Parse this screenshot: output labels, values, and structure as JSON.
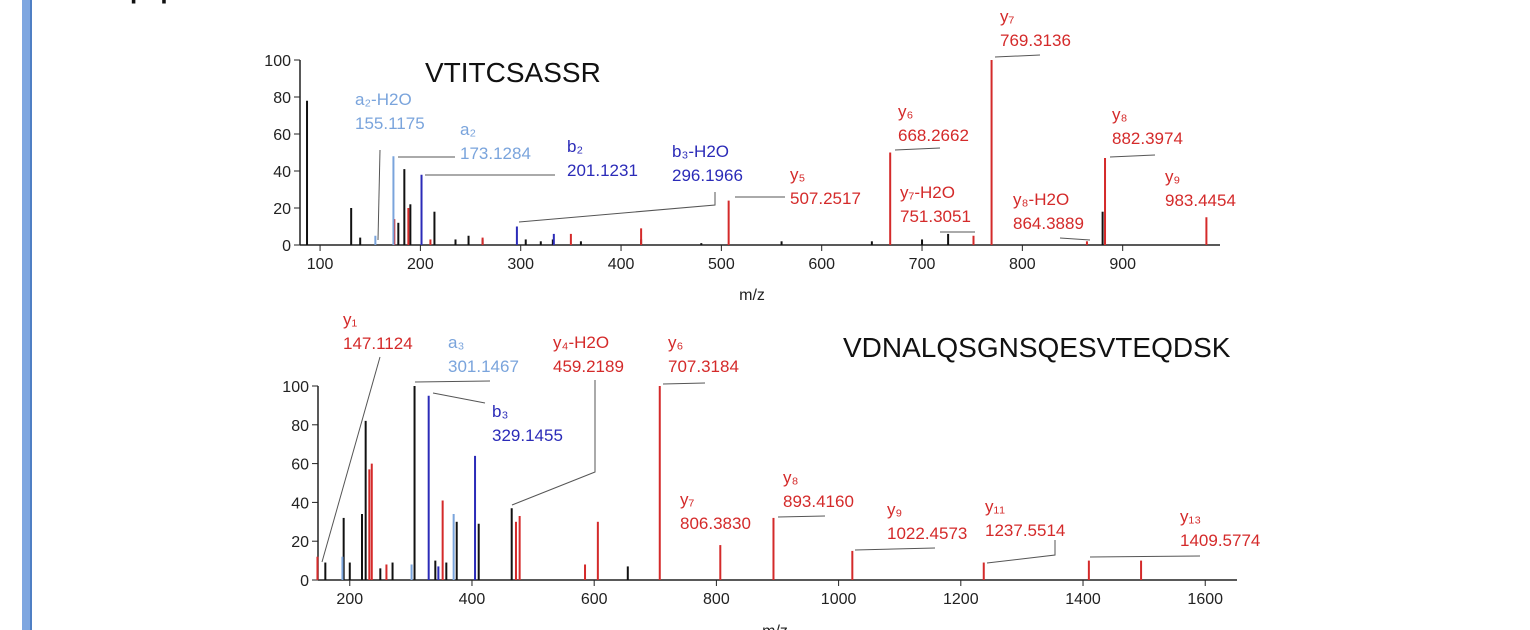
{
  "heading": "peptides",
  "chart_data": [
    {
      "type": "bar",
      "title": "VTITCSASSR",
      "xlabel": "m/z",
      "xlim": [
        80,
        997
      ],
      "xticks": [
        100,
        200,
        300,
        400,
        500,
        600,
        700,
        800,
        900
      ],
      "ylim": [
        0,
        100
      ],
      "yticks": [
        0,
        20,
        40,
        60,
        80,
        100
      ],
      "series": [
        {
          "color": "#111111",
          "x": [
            87,
            131,
            140,
            178,
            184,
            190,
            214,
            235,
            248,
            262,
            305,
            320,
            332,
            360,
            420,
            480,
            560,
            650,
            700,
            726,
            880
          ],
          "values": [
            78,
            20,
            4,
            12,
            41,
            22,
            18,
            3,
            5,
            3,
            3,
            2,
            3,
            2,
            3,
            1,
            2,
            2,
            3,
            6,
            18
          ]
        },
        {
          "color": "#d42a2a",
          "x": [
            174,
            188,
            210,
            262,
            350,
            420,
            507.2517,
            668.2662,
            751.3051,
            769.3136,
            864.3889,
            882.3974,
            983.4454
          ],
          "values": [
            14,
            20,
            3,
            4,
            6,
            9,
            24,
            50,
            5,
            100,
            2,
            47,
            15
          ]
        },
        {
          "color": "#2b2bb8",
          "x": [
            201.1231,
            296.1966,
            333
          ],
          "values": [
            38,
            10,
            6
          ]
        },
        {
          "color": "#7aa4dc",
          "x": [
            155.1175,
            173.1284
          ],
          "values": [
            5,
            48
          ]
        }
      ],
      "annotations": [
        {
          "ion": "a₂-H2O",
          "mz": "155.1175",
          "color": "#7aa4dc"
        },
        {
          "ion": "a₂",
          "mz": "173.1284",
          "color": "#7aa4dc"
        },
        {
          "ion": "b₂",
          "mz": "201.1231",
          "color": "#2b2bb8"
        },
        {
          "ion": "b₃-H2O",
          "mz": "296.1966",
          "color": "#2b2bb8"
        },
        {
          "ion": "y₅",
          "mz": "507.2517",
          "color": "#d42a2a"
        },
        {
          "ion": "y₆",
          "mz": "668.2662",
          "color": "#d42a2a"
        },
        {
          "ion": "y₇-H2O",
          "mz": "751.3051",
          "color": "#d42a2a"
        },
        {
          "ion": "y₇",
          "mz": "769.3136",
          "color": "#d42a2a"
        },
        {
          "ion": "y₈",
          "mz": "882.3974",
          "color": "#d42a2a"
        },
        {
          "ion": "y₈-H2O",
          "mz": "864.3889",
          "color": "#d42a2a"
        },
        {
          "ion": "y₉",
          "mz": "983.4454",
          "color": "#d42a2a"
        }
      ]
    },
    {
      "type": "bar",
      "title": "VDNALQSGNSQESVTEQDSK",
      "xlabel": "m/z",
      "xlim": [
        148,
        1652
      ],
      "xticks": [
        200,
        400,
        600,
        800,
        1000,
        1200,
        1400,
        1600
      ],
      "ylim": [
        0,
        100
      ],
      "yticks": [
        0,
        20,
        40,
        60,
        80,
        100
      ],
      "series": [
        {
          "color": "#111111",
          "x": [
            160,
            190,
            200,
            220,
            226,
            250,
            270,
            306,
            340,
            358,
            375,
            411,
            465,
            655
          ],
          "values": [
            9,
            32,
            9,
            34,
            82,
            6,
            9,
            100,
            10,
            9,
            30,
            29,
            37,
            7
          ]
        },
        {
          "color": "#d42a2a",
          "x": [
            147.1124,
            232,
            236,
            260,
            352,
            472,
            478,
            585,
            606,
            707.3184,
            806.383,
            893.416,
            1022.4573,
            1237.5514,
            1409.5774,
            1495
          ],
          "values": [
            12,
            57,
            60,
            8,
            41,
            30,
            33,
            8,
            30,
            100,
            18,
            32,
            15,
            9,
            10,
            10
          ]
        },
        {
          "color": "#2b2bb8",
          "x": [
            329.1455,
            405,
            345
          ],
          "values": [
            95,
            64,
            7
          ]
        },
        {
          "color": "#7aa4dc",
          "x": [
            301.1467,
            370,
            188
          ],
          "values": [
            8,
            34,
            12
          ]
        }
      ],
      "annotations": [
        {
          "ion": "y₁",
          "mz": "147.1124",
          "color": "#d42a2a"
        },
        {
          "ion": "a₃",
          "mz": "301.1467",
          "color": "#7aa4dc"
        },
        {
          "ion": "b₃",
          "mz": "329.1455",
          "color": "#2b2bb8"
        },
        {
          "ion": "y₄-H2O",
          "mz": "459.2189",
          "color": "#d42a2a"
        },
        {
          "ion": "y₆",
          "mz": "707.3184",
          "color": "#d42a2a"
        },
        {
          "ion": "y₇",
          "mz": "806.3830",
          "color": "#d42a2a"
        },
        {
          "ion": "y₈",
          "mz": "893.4160",
          "color": "#d42a2a"
        },
        {
          "ion": "y₉",
          "mz": "1022.4573",
          "color": "#d42a2a"
        },
        {
          "ion": "y₁₁",
          "mz": "1237.5514",
          "color": "#d42a2a"
        },
        {
          "ion": "y₁₃",
          "mz": "1409.5774",
          "color": "#d42a2a"
        }
      ]
    }
  ]
}
